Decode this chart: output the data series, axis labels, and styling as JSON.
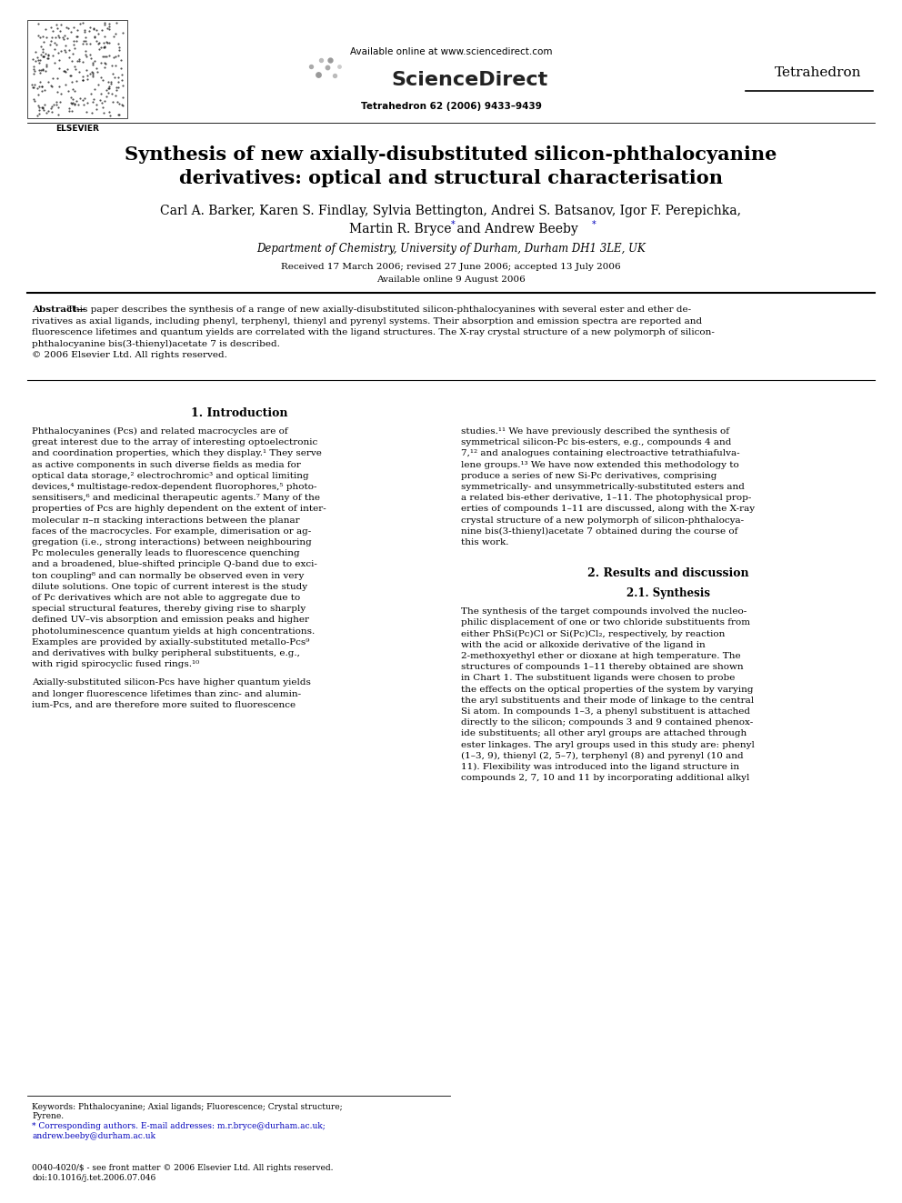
{
  "bg_color": "#ffffff",
  "title_line1": "Synthesis of new axially-disubstituted silicon-phthalocyanine",
  "title_line2": "derivatives: optical and structural characterisation",
  "authors_line1": "Carl A. Barker, Karen S. Findlay, Sylvia Bettington, Andrei S. Batsanov, Igor F. Perepichka,",
  "authors_line2_a": "Martin R. Bryce",
  "authors_line2_b": " and Andrew Beeby",
  "affiliation": "Department of Chemistry, University of Durham, Durham DH1 3LE, UK",
  "received": "Received 17 March 2006; revised 27 June 2006; accepted 13 July 2006",
  "available": "Available online 9 August 2006",
  "journal_top": "Tetrahedron",
  "journal_issue": "Tetrahedron 62 (2006) 9433–9439",
  "available_online": "Available online at www.sciencedirect.com",
  "sciencedirect": "ScienceDirect",
  "footer1": "0040-4020/$ - see front matter © 2006 Elsevier Ltd. All rights reserved.",
  "footer2": "doi:10.1016/j.tet.2006.07.046",
  "abstract_lines": [
    "Abstract—This paper describes the synthesis of a range of new axially-disubstituted silicon-phthalocyanines with several ester and ether de-",
    "rivatives as axial ligands, including phenyl, terphenyl, thienyl and pyrenyl systems. Their absorption and emission spectra are reported and",
    "fluorescence lifetimes and quantum yields are correlated with the ligand structures. The X-ray crystal structure of a new polymorph of silicon-",
    "phthalocyanine bis(3-thienyl)acetate 7 is described.",
    "© 2006 Elsevier Ltd. All rights reserved."
  ],
  "section1_title": "1. Introduction",
  "intro_col1_lines": [
    "Phthalocyanines (Pcs) and related macrocycles are of",
    "great interest due to the array of interesting optoelectronic",
    "and coordination properties, which they display.¹ They serve",
    "as active components in such diverse fields as media for",
    "optical data storage,² electrochromic³ and optical limiting",
    "devices,⁴ multistage-redox-dependent fluorophores,⁵ photo-",
    "sensitisers,⁶ and medicinal therapeutic agents.⁷ Many of the",
    "properties of Pcs are highly dependent on the extent of inter-",
    "molecular π–π stacking interactions between the planar",
    "faces of the macrocycles. For example, dimerisation or ag-",
    "gregation (i.e., strong interactions) between neighbouring",
    "Pc molecules generally leads to fluorescence quenching",
    "and a broadened, blue-shifted principle Q-band due to exci-",
    "ton coupling⁸ and can normally be observed even in very",
    "dilute solutions. One topic of current interest is the study",
    "of Pc derivatives which are not able to aggregate due to",
    "special structural features, thereby giving rise to sharply",
    "defined UV–vis absorption and emission peaks and higher",
    "photoluminescence quantum yields at high concentrations.",
    "Examples are provided by axially-substituted metallo-Pcs⁹",
    "and derivatives with bulky peripheral substituents, e.g.,",
    "with rigid spirocyclic fused rings.¹⁰"
  ],
  "intro_col1_para2": [
    "Axially-substituted silicon-Pcs have higher quantum yields",
    "and longer fluorescence lifetimes than zinc- and alumin-",
    "ium-Pcs, and are therefore more suited to fluorescence"
  ],
  "intro_col2_lines": [
    "studies.¹¹ We have previously described the synthesis of",
    "symmetrical silicon-Pc bis-esters, e.g., compounds 4 and",
    "7,¹² and analogues containing electroactive tetrathiafulva-",
    "lene groups.¹³ We have now extended this methodology to",
    "produce a series of new Si-Pc derivatives, comprising",
    "symmetrically- and unsymmetrically-substituted esters and",
    "a related bis-ether derivative, 1–11. The photophysical prop-",
    "erties of compounds 1–11 are discussed, along with the X-ray",
    "crystal structure of a new polymorph of silicon-phthalocya-",
    "nine bis(3-thienyl)acetate 7 obtained during the course of",
    "this work."
  ],
  "section2_title": "2. Results and discussion",
  "section2_subtitle": "2.1. Synthesis",
  "synth_lines": [
    "The synthesis of the target compounds involved the nucleo-",
    "philic displacement of one or two chloride substituents from",
    "either PhSi(Pc)Cl or Si(Pc)Cl₂, respectively, by reaction",
    "with the acid or alkoxide derivative of the ligand in",
    "2-methoxyethyl ether or dioxane at high temperature. The",
    "structures of compounds 1–11 thereby obtained are shown",
    "in Chart 1. The substituent ligands were chosen to probe",
    "the effects on the optical properties of the system by varying",
    "the aryl substituents and their mode of linkage to the central",
    "Si atom. In compounds 1–3, a phenyl substituent is attached",
    "directly to the silicon; compounds 3 and 9 contained phenox-",
    "ide substituents; all other aryl groups are attached through",
    "ester linkages. The aryl groups used in this study are: phenyl",
    "(1–3, 9), thienyl (2, 5–7), terphenyl (8) and pyrenyl (10 and",
    "11). Flexibility was introduced into the ligand structure in",
    "compounds 2, 7, 10 and 11 by incorporating additional alkyl"
  ],
  "keywords_lines": [
    "Keywords: Phthalocyanine; Axial ligands; Fluorescence; Crystal structure;",
    "Pyrene.",
    "* Corresponding authors. E-mail addresses: m.r.bryce@durham.ac.uk;",
    "andrew.beeby@durham.ac.uk"
  ]
}
